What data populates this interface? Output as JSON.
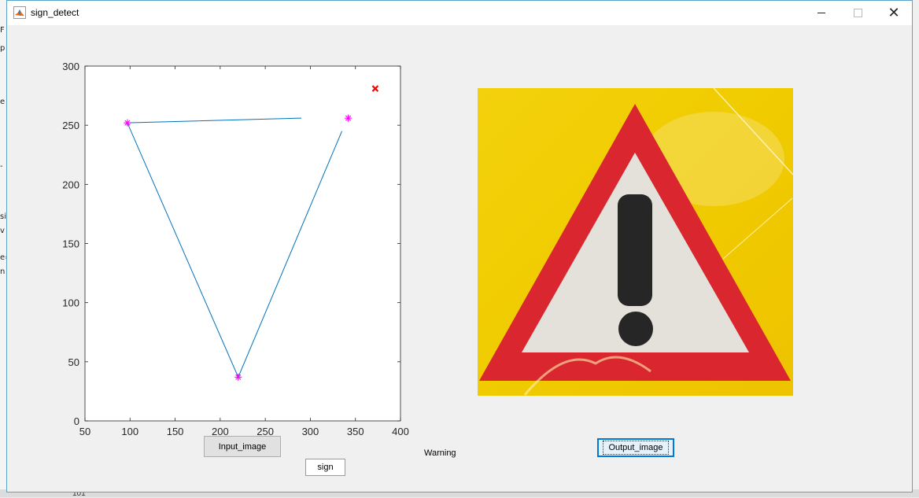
{
  "window": {
    "title": "sign_detect",
    "controls": {
      "minimize": "—",
      "maximize": "☐",
      "close": "✕"
    }
  },
  "background": {
    "left_snippets": [
      "F",
      "p",
      "",
      "e",
      "-",
      "si",
      "v",
      "e=",
      "n"
    ],
    "line_number": "101"
  },
  "chart_data": {
    "type": "line",
    "xlim": [
      50,
      400
    ],
    "ylim": [
      0,
      300
    ],
    "xticks": [
      "50",
      "100",
      "150",
      "200",
      "250",
      "300",
      "350",
      "400"
    ],
    "yticks": [
      "0",
      "50",
      "100",
      "150",
      "200",
      "250",
      "300"
    ],
    "series": [
      {
        "style": "line",
        "color": "#0072bd",
        "x": [
          290,
          97,
          220,
          335
        ],
        "y": [
          256,
          252,
          37,
          245
        ]
      },
      {
        "style": "marker-star",
        "color": "#ff00ff",
        "x": [
          97,
          220,
          342
        ],
        "y": [
          252,
          37,
          256
        ]
      },
      {
        "style": "marker-x",
        "color": "#ff0000",
        "x": [
          372
        ],
        "y": [
          281
        ]
      }
    ],
    "grid": false
  },
  "output_image": {
    "description_icon": "warning-triangle-sign-image"
  },
  "buttons": {
    "input_image": "Input_image",
    "output_image": "Output_image"
  },
  "sign_field": {
    "value": "sign"
  },
  "result_label": "Warning",
  "colors": {
    "accent": "#0078d7",
    "sign_red": "#d9252f",
    "sign_yellow": "#f2cf00",
    "sign_white": "#e6e2dc",
    "exclamation": "#222222"
  }
}
